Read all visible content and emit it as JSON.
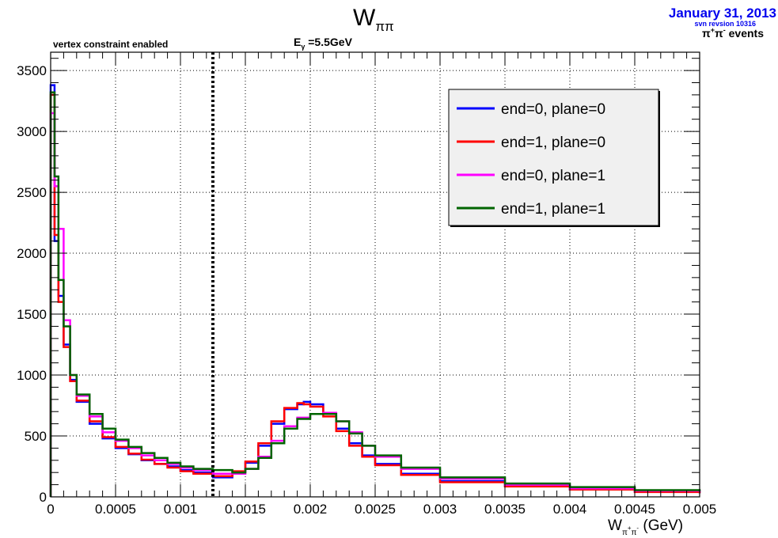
{
  "header": {
    "date": "January 31, 2013",
    "svn": "svn revsion 10316",
    "events_main": "π",
    "events_sup1": "+",
    "events_mid": "π",
    "events_sup2": "-",
    "events_tail": " events",
    "date_color": "#0000ee"
  },
  "chart_data": {
    "type": "line",
    "title_main": "W",
    "title_sub": "ππ",
    "subtitle_left": "vertex constraint enabled",
    "energy_main": "E",
    "energy_sub": "γ",
    "energy_value": " =5.5GeV",
    "xlabel_main": "W",
    "xlabel_sub": "π",
    "xlabel_sup1": "+",
    "xlabel_sub2": "π",
    "xlabel_sup2": "-",
    "xlabel_unit": " (GeV)",
    "xlim": [
      0,
      0.005
    ],
    "ylim": [
      0,
      3650
    ],
    "xticks": [
      0,
      0.0005,
      0.001,
      0.0015,
      0.002,
      0.0025,
      0.003,
      0.0035,
      0.004,
      0.0045,
      0.005
    ],
    "xtick_labels": [
      "0",
      "0.0005",
      "0.001",
      "0.0015",
      "0.002",
      "0.0025",
      "0.003",
      "0.0035",
      "0.004",
      "0.0045",
      "0.005"
    ],
    "yticks": [
      0,
      500,
      1000,
      1500,
      2000,
      2500,
      3000,
      3500
    ],
    "ytick_labels": [
      "0",
      "500",
      "1000",
      "1500",
      "2000",
      "2500",
      "3000",
      "3500"
    ],
    "grid": true,
    "cut_line_x": 0.00125,
    "legend_position": "top-right",
    "series": [
      {
        "name": "end=0, plane=0",
        "color": "#0000ff",
        "x": [
          0,
          3e-05,
          6e-05,
          0.0001,
          0.00015,
          0.0002,
          0.0003,
          0.0004,
          0.0005,
          0.0006,
          0.0007,
          0.0008,
          0.0009,
          0.001,
          0.0011,
          0.00125,
          0.0014,
          0.0015,
          0.0016,
          0.0017,
          0.0018,
          0.0019,
          0.00195,
          0.002,
          0.0021,
          0.0022,
          0.0023,
          0.0024,
          0.0025,
          0.0027,
          0.003,
          0.0035,
          0.004,
          0.0045,
          0.005
        ],
        "y": [
          3380,
          2100,
          1650,
          1250,
          960,
          780,
          600,
          480,
          400,
          350,
          300,
          270,
          250,
          220,
          200,
          160,
          200,
          280,
          420,
          600,
          720,
          760,
          780,
          760,
          680,
          560,
          440,
          340,
          270,
          190,
          130,
          90,
          60,
          45,
          30
        ]
      },
      {
        "name": "end=1, plane=0",
        "color": "#ff0000",
        "x": [
          0,
          3e-05,
          6e-05,
          0.0001,
          0.00015,
          0.0002,
          0.0003,
          0.0004,
          0.0005,
          0.0006,
          0.0007,
          0.0008,
          0.0009,
          0.001,
          0.0011,
          0.00125,
          0.0014,
          0.0015,
          0.0016,
          0.0017,
          0.0018,
          0.0019,
          0.00195,
          0.002,
          0.0021,
          0.0022,
          0.0023,
          0.0024,
          0.0025,
          0.0027,
          0.003,
          0.0035,
          0.004,
          0.0045,
          0.005
        ],
        "y": [
          3300,
          2150,
          1600,
          1230,
          950,
          790,
          620,
          490,
          410,
          355,
          305,
          270,
          240,
          210,
          190,
          170,
          210,
          290,
          440,
          620,
          730,
          770,
          760,
          740,
          660,
          540,
          420,
          330,
          260,
          180,
          120,
          85,
          60,
          40,
          30
        ]
      },
      {
        "name": "end=0, plane=1",
        "color": "#ff00ff",
        "x": [
          0,
          3e-05,
          6e-05,
          0.0001,
          0.00015,
          0.0002,
          0.0003,
          0.0004,
          0.0005,
          0.0006,
          0.0007,
          0.0008,
          0.0009,
          0.001,
          0.0011,
          0.00125,
          0.0014,
          0.0015,
          0.0016,
          0.0017,
          0.0018,
          0.0019,
          0.002,
          0.0021,
          0.0022,
          0.0023,
          0.0024,
          0.0025,
          0.0027,
          0.003,
          0.0035,
          0.004,
          0.0045,
          0.005
        ],
        "y": [
          3150,
          2550,
          2200,
          1450,
          1000,
          830,
          660,
          530,
          460,
          400,
          340,
          300,
          270,
          240,
          220,
          190,
          190,
          230,
          330,
          460,
          580,
          650,
          680,
          690,
          620,
          530,
          420,
          330,
          230,
          150,
          100,
          70,
          50,
          40
        ]
      },
      {
        "name": "end=1, plane=1",
        "color": "#006400",
        "x": [
          0,
          3e-05,
          6e-05,
          0.0001,
          0.00015,
          0.0002,
          0.0003,
          0.0004,
          0.0005,
          0.0006,
          0.0007,
          0.0008,
          0.0009,
          0.001,
          0.0011,
          0.00125,
          0.0014,
          0.0015,
          0.0016,
          0.0017,
          0.0018,
          0.0019,
          0.002,
          0.0021,
          0.0022,
          0.0023,
          0.0024,
          0.0025,
          0.0027,
          0.003,
          0.0035,
          0.004,
          0.0045,
          0.005
        ],
        "y": [
          3320,
          2630,
          1780,
          1400,
          1000,
          840,
          680,
          560,
          470,
          410,
          360,
          320,
          280,
          250,
          230,
          220,
          200,
          230,
          320,
          440,
          560,
          640,
          680,
          680,
          620,
          520,
          420,
          340,
          240,
          160,
          110,
          80,
          55,
          45
        ]
      }
    ]
  }
}
